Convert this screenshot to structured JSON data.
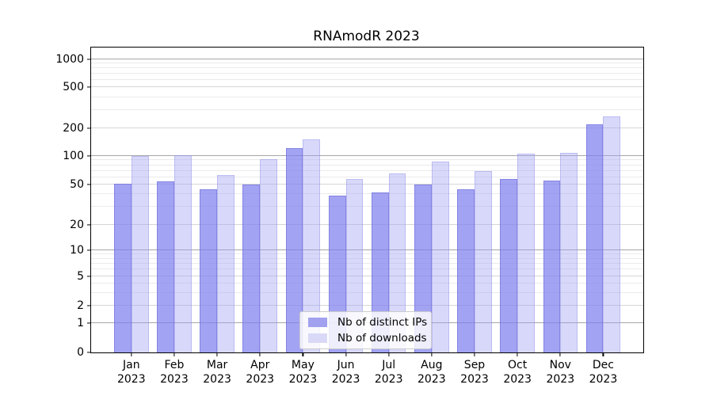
{
  "chart_data": {
    "type": "bar",
    "title": "RNAmodR 2023",
    "categories": [
      "Jan",
      "Feb",
      "Mar",
      "Apr",
      "May",
      "Jun",
      "Jul",
      "Aug",
      "Sep",
      "Oct",
      "Nov",
      "Dec"
    ],
    "x_tick_year": "2023",
    "series": [
      {
        "name": "Nb of distinct IPs",
        "key": "distinct-ips",
        "color": "#a1a1ef",
        "values": [
          51,
          54,
          45,
          50,
          123,
          39,
          42,
          50,
          45,
          57,
          55,
          220
        ]
      },
      {
        "name": "Nb of downloads",
        "key": "downloads",
        "color": "#d9d9f7",
        "values": [
          100,
          103,
          63,
          93,
          152,
          57,
          66,
          88,
          70,
          106,
          108,
          260
        ]
      }
    ],
    "xlabel": "",
    "ylabel": "",
    "yscale": "log",
    "ylim": [
      0,
      1300
    ],
    "y_ticks": [
      0,
      1,
      2,
      5,
      10,
      20,
      50,
      100,
      200,
      500,
      1000
    ],
    "y_tick_labels": [
      "0",
      "1",
      "2",
      "5",
      "10",
      "20",
      "50",
      "100",
      "200",
      "500",
      "1000"
    ],
    "grid": "horizontal major + minor log gridlines",
    "legend_position": "bottom-center"
  },
  "colors": {
    "bar_distinct_ips": "#a1a1ef",
    "bar_downloads": "#d9d9f7",
    "grid_major": "#a6a6a6",
    "grid_mid": "#d6d6d6",
    "grid_minor": "#ebebeb",
    "axis": "#000000",
    "background": "#ffffff"
  }
}
